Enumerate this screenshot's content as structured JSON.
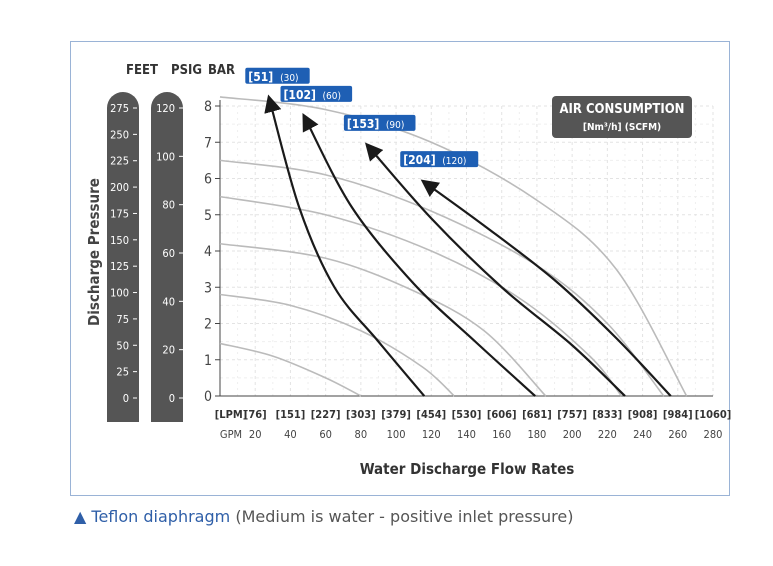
{
  "chart_data": {
    "type": "line",
    "y_axis_headers": [
      "FEET",
      "PSIG",
      "BAR"
    ],
    "ylabel": "Discharge Pressure",
    "xlabel": "Water Discharge Flow Rates",
    "feet_ticks": [
      "275",
      "250",
      "225",
      "200",
      "175",
      "150",
      "125",
      "100",
      "75",
      "50",
      "25",
      "0"
    ],
    "psig_ticks": [
      "120",
      "100",
      "80",
      "60",
      "40",
      "20",
      "0"
    ],
    "bar_ticks": [
      "8",
      "7",
      "6",
      "5",
      "4",
      "3",
      "2",
      "1",
      "0"
    ],
    "lpm_unit": "[LPM]",
    "lpm_ticks": [
      "[76]",
      "[151]",
      "[227]",
      "[303]",
      "[379]",
      "[454]",
      "[530]",
      "[606]",
      "[681]",
      "[757]",
      "[833]",
      "[908]",
      "[984]",
      "[1060]"
    ],
    "gpm_unit": "GPM",
    "gpm_ticks": [
      "20",
      "40",
      "60",
      "80",
      "100",
      "120",
      "140",
      "160",
      "180",
      "200",
      "220",
      "240",
      "260",
      "280"
    ],
    "x_units": "GPM",
    "y_units": "BAR",
    "xlim": [
      0,
      280
    ],
    "ylim": [
      0,
      8
    ],
    "grid": true,
    "legend_box": {
      "title": "AIR CONSUMPTION",
      "subtitle": "[Nm³/h] (SCFM)",
      "color": "#555555"
    },
    "air_curves": [
      {
        "label_metric": "[51]",
        "label_imperial": "(30)",
        "points": [
          [
            28,
            8.2
          ],
          [
            45,
            5.2
          ],
          [
            65,
            3.0
          ],
          [
            90,
            1.5
          ],
          [
            116,
            0
          ]
        ]
      },
      {
        "label_metric": "[102]",
        "label_imperial": "(60)",
        "points": [
          [
            48,
            7.7
          ],
          [
            75,
            5.2
          ],
          [
            110,
            3.1
          ],
          [
            145,
            1.5
          ],
          [
            179,
            0
          ]
        ]
      },
      {
        "label_metric": "[153]",
        "label_imperial": "(90)",
        "points": [
          [
            84,
            6.9
          ],
          [
            120,
            4.9
          ],
          [
            160,
            3.0
          ],
          [
            200,
            1.4
          ],
          [
            230,
            0
          ]
        ]
      },
      {
        "label_metric": "[204]",
        "label_imperial": "(120)",
        "points": [
          [
            116,
            5.9
          ],
          [
            150,
            4.7
          ],
          [
            190,
            3.2
          ],
          [
            225,
            1.6
          ],
          [
            256,
            0
          ]
        ]
      }
    ],
    "pressure_curves": [
      {
        "points": [
          [
            0,
            8.25
          ],
          [
            60,
            7.9
          ],
          [
            120,
            7.0
          ],
          [
            180,
            5.4
          ],
          [
            225,
            3.5
          ],
          [
            265,
            0
          ]
        ]
      },
      {
        "points": [
          [
            0,
            6.5
          ],
          [
            60,
            6.1
          ],
          [
            120,
            5.1
          ],
          [
            180,
            3.6
          ],
          [
            220,
            2.0
          ],
          [
            252,
            0
          ]
        ]
      },
      {
        "points": [
          [
            0,
            5.5
          ],
          [
            60,
            5.0
          ],
          [
            120,
            4.0
          ],
          [
            170,
            2.7
          ],
          [
            210,
            1.1
          ],
          [
            228,
            0
          ]
        ]
      },
      {
        "points": [
          [
            0,
            4.2
          ],
          [
            60,
            3.8
          ],
          [
            110,
            2.9
          ],
          [
            150,
            1.8
          ],
          [
            185,
            0
          ]
        ]
      },
      {
        "points": [
          [
            0,
            2.8
          ],
          [
            40,
            2.5
          ],
          [
            80,
            1.8
          ],
          [
            115,
            0.8
          ],
          [
            133,
            0
          ]
        ]
      },
      {
        "points": [
          [
            0,
            1.45
          ],
          [
            30,
            1.1
          ],
          [
            60,
            0.5
          ],
          [
            80,
            0
          ]
        ]
      }
    ],
    "accent_color": "#1e5fb4",
    "curve_color": "#1a1a1a",
    "pressure_curve_color": "#bbbbbb",
    "column_color": "#555555"
  },
  "caption": {
    "icon": "triangle-up-icon",
    "material": "Teflon diaphragm",
    "note": "(Medium is water -  positive inlet pressure)"
  }
}
